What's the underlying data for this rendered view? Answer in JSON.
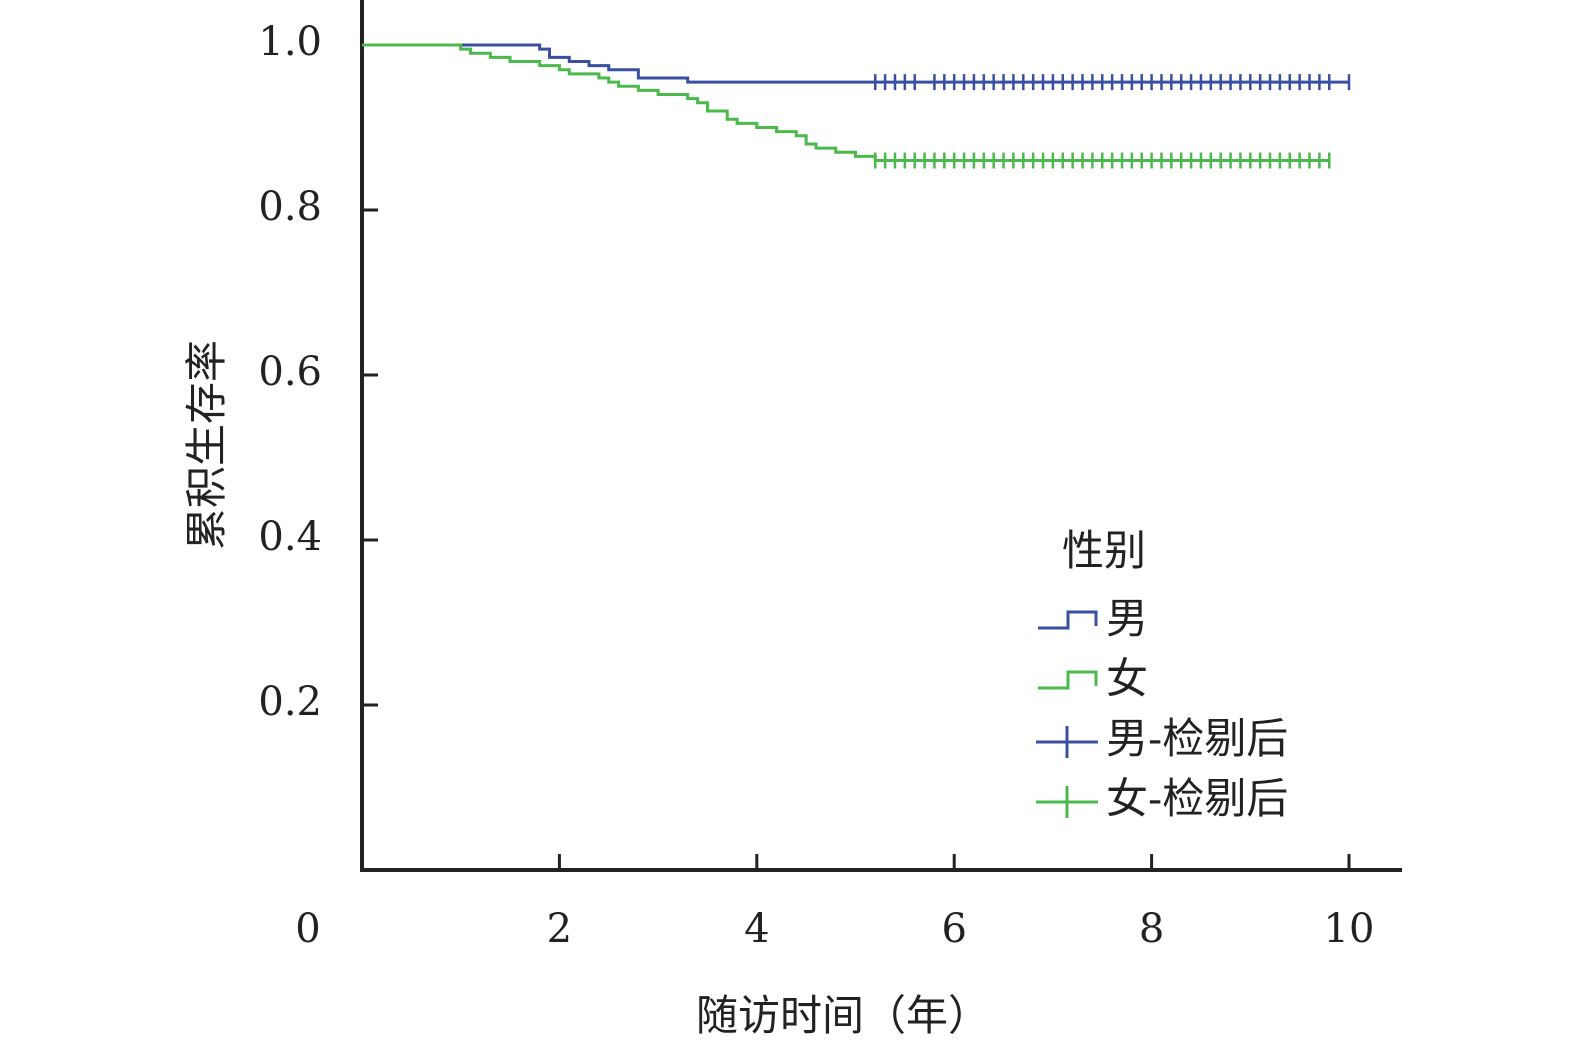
{
  "chart_data": {
    "type": "line",
    "subtype": "kaplan-meier",
    "xlabel": "随访时间（年）",
    "ylabel": "累积生存率",
    "x_ticks": [
      "0",
      "2",
      "4",
      "6",
      "8",
      "10"
    ],
    "y_ticks": [
      "0.2",
      "0.4",
      "0.6",
      "0.8",
      "1.0"
    ],
    "xlim": [
      0,
      10.5
    ],
    "ylim": [
      0,
      1.05
    ],
    "grid": false,
    "legend": {
      "title": "性别",
      "position": "lower-right",
      "items": [
        {
          "label": "男",
          "kind": "step",
          "color": "#3a4fa0"
        },
        {
          "label": "女",
          "kind": "step",
          "color": "#4cb94c"
        },
        {
          "label": "男-检剔后",
          "kind": "censor",
          "color": "#3a4fa0"
        },
        {
          "label": "女-检剔后",
          "kind": "censor",
          "color": "#4cb94c"
        }
      ]
    },
    "series": [
      {
        "name": "男",
        "color": "#3a4fa0",
        "steps": [
          [
            0,
            1.0
          ],
          [
            1.8,
            0.995
          ],
          [
            1.9,
            0.985
          ],
          [
            2.1,
            0.98
          ],
          [
            2.3,
            0.975
          ],
          [
            2.5,
            0.97
          ],
          [
            2.8,
            0.96
          ],
          [
            3.0,
            0.96
          ],
          [
            3.3,
            0.955
          ],
          [
            5.2,
            0.955
          ],
          [
            10.0,
            0.955
          ]
        ],
        "censored": [
          5.2,
          5.3,
          5.4,
          5.5,
          5.6,
          5.8,
          5.9,
          6.0,
          6.1,
          6.2,
          6.3,
          6.4,
          6.5,
          6.6,
          6.7,
          6.8,
          6.9,
          7.0,
          7.1,
          7.2,
          7.3,
          7.4,
          7.5,
          7.6,
          7.7,
          7.8,
          7.9,
          8.0,
          8.1,
          8.2,
          8.3,
          8.4,
          8.5,
          8.6,
          8.7,
          8.8,
          8.9,
          9.0,
          9.1,
          9.2,
          9.3,
          9.4,
          9.5,
          9.6,
          9.7,
          9.8,
          10.0
        ],
        "censored_value": 0.955
      },
      {
        "name": "女",
        "color": "#4cb94c",
        "steps": [
          [
            0,
            1.0
          ],
          [
            1.0,
            0.995
          ],
          [
            1.1,
            0.99
          ],
          [
            1.3,
            0.985
          ],
          [
            1.5,
            0.98
          ],
          [
            1.8,
            0.975
          ],
          [
            2.0,
            0.97
          ],
          [
            2.1,
            0.965
          ],
          [
            2.4,
            0.96
          ],
          [
            2.5,
            0.955
          ],
          [
            2.6,
            0.95
          ],
          [
            2.8,
            0.945
          ],
          [
            3.0,
            0.94
          ],
          [
            3.1,
            0.94
          ],
          [
            3.3,
            0.935
          ],
          [
            3.4,
            0.93
          ],
          [
            3.5,
            0.92
          ],
          [
            3.7,
            0.91
          ],
          [
            3.8,
            0.905
          ],
          [
            4.0,
            0.9
          ],
          [
            4.2,
            0.895
          ],
          [
            4.4,
            0.89
          ],
          [
            4.5,
            0.88
          ],
          [
            4.6,
            0.875
          ],
          [
            4.8,
            0.87
          ],
          [
            5.0,
            0.865
          ],
          [
            5.2,
            0.86
          ],
          [
            9.8,
            0.86
          ]
        ],
        "censored": [
          5.2,
          5.3,
          5.4,
          5.5,
          5.6,
          5.7,
          5.8,
          5.9,
          6.0,
          6.1,
          6.2,
          6.3,
          6.4,
          6.5,
          6.6,
          6.7,
          6.8,
          6.9,
          7.0,
          7.1,
          7.2,
          7.3,
          7.4,
          7.5,
          7.6,
          7.7,
          7.8,
          7.9,
          8.0,
          8.1,
          8.2,
          8.3,
          8.4,
          8.5,
          8.6,
          8.7,
          8.8,
          8.9,
          9.0,
          9.1,
          9.2,
          9.3,
          9.4,
          9.5,
          9.6,
          9.7,
          9.8
        ],
        "censored_value": 0.86
      }
    ]
  }
}
